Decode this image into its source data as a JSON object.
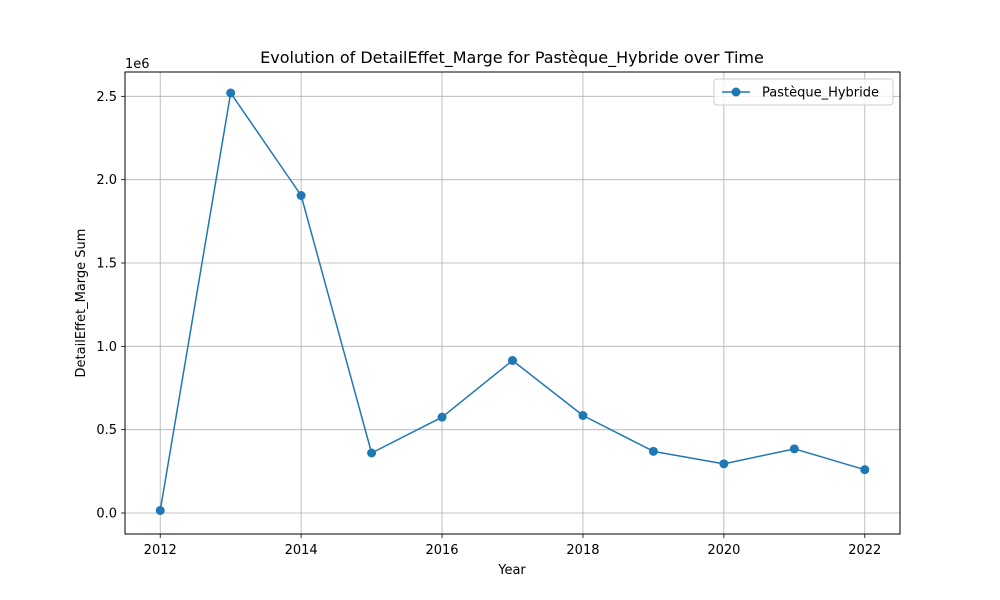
{
  "chart_data": {
    "type": "line",
    "title": "Evolution of DetailEffet_Marge for Pastèque_Hybride over Time",
    "xlabel": "Year",
    "ylabel": "DetailEffet_Marge Sum",
    "y_offset_label": "1e6",
    "x_ticks": [
      "2012",
      "2014",
      "2016",
      "2018",
      "2020",
      "2022"
    ],
    "y_ticks": [
      "0.0",
      "0.5",
      "1.0",
      "1.5",
      "2.0",
      "2.5"
    ],
    "xlim": [
      2011.5,
      2022.5
    ],
    "ylim": [
      -0.126,
      2.646
    ],
    "y_scale_note": "values in units of 1e6",
    "grid": true,
    "legend_position": "top-right",
    "series": [
      {
        "name": "Pastèque_Hybride",
        "color": "#1f77b4",
        "x": [
          2012,
          2013,
          2014,
          2015,
          2016,
          2017,
          2018,
          2019,
          2020,
          2021,
          2022
        ],
        "values": [
          0.015,
          2.52,
          1.905,
          0.36,
          0.575,
          0.915,
          0.585,
          0.37,
          0.295,
          0.385,
          0.26
        ]
      }
    ]
  }
}
